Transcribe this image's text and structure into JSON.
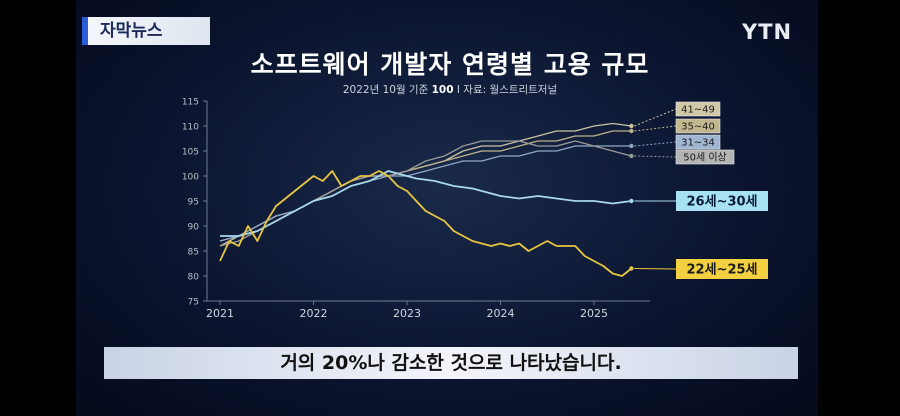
{
  "header": {
    "badge": "자막뉴스",
    "logo": "YTN"
  },
  "caption": "거의 20%나 감소한 것으로 나타났습니다.",
  "chart_data": {
    "type": "line",
    "title": "소프트웨어 개발자 연령별 고용 규모",
    "subtitle_parts": [
      "2022년 10월 기준 ",
      "100",
      "  I  자료: 월스트리트저널"
    ],
    "ylim": [
      75,
      115
    ],
    "y_ticks": [
      75,
      80,
      85,
      90,
      95,
      100,
      105,
      110,
      115
    ],
    "xlim": [
      2021,
      2025.5
    ],
    "x_ticks": [
      2021,
      2022,
      2023,
      2024,
      2025
    ],
    "grid": false,
    "series": [
      {
        "name": "41~49",
        "color": "#c9c3a2",
        "label_bg": "#cfc9a8",
        "label_fg": "#1a1a1a",
        "end_value": 110,
        "points": [
          [
            2021.0,
            86
          ],
          [
            2021.2,
            88
          ],
          [
            2021.4,
            90
          ],
          [
            2021.6,
            92
          ],
          [
            2021.8,
            93
          ],
          [
            2022.0,
            95
          ],
          [
            2022.2,
            97
          ],
          [
            2022.4,
            99
          ],
          [
            2022.6,
            100
          ],
          [
            2022.8,
            100
          ],
          [
            2023.0,
            101
          ],
          [
            2023.2,
            102
          ],
          [
            2023.4,
            103
          ],
          [
            2023.6,
            105
          ],
          [
            2023.8,
            106
          ],
          [
            2024.0,
            106
          ],
          [
            2024.2,
            107
          ],
          [
            2024.4,
            108
          ],
          [
            2024.6,
            109
          ],
          [
            2024.8,
            109
          ],
          [
            2025.0,
            110
          ],
          [
            2025.2,
            110.5
          ],
          [
            2025.4,
            110
          ]
        ]
      },
      {
        "name": "35~40",
        "color": "#bdb38d",
        "label_bg": "#c2b88f",
        "label_fg": "#1a1a1a",
        "end_value": 109,
        "points": [
          [
            2021.0,
            87
          ],
          [
            2021.2,
            88
          ],
          [
            2021.4,
            89
          ],
          [
            2021.6,
            91
          ],
          [
            2021.8,
            93
          ],
          [
            2022.0,
            95
          ],
          [
            2022.2,
            97
          ],
          [
            2022.4,
            99
          ],
          [
            2022.6,
            100
          ],
          [
            2022.8,
            100
          ],
          [
            2023.0,
            101
          ],
          [
            2023.2,
            102
          ],
          [
            2023.4,
            103
          ],
          [
            2023.6,
            104
          ],
          [
            2023.8,
            105
          ],
          [
            2024.0,
            105
          ],
          [
            2024.2,
            106
          ],
          [
            2024.4,
            107
          ],
          [
            2024.6,
            107
          ],
          [
            2024.8,
            108
          ],
          [
            2025.0,
            108
          ],
          [
            2025.2,
            109
          ],
          [
            2025.4,
            109
          ]
        ]
      },
      {
        "name": "31~34",
        "color": "#8fa7c7",
        "label_bg": "#9fb5d2",
        "label_fg": "#1a1a1a",
        "end_value": 106,
        "points": [
          [
            2021.0,
            87
          ],
          [
            2021.2,
            88
          ],
          [
            2021.4,
            90
          ],
          [
            2021.6,
            92
          ],
          [
            2021.8,
            93
          ],
          [
            2022.0,
            95
          ],
          [
            2022.2,
            96
          ],
          [
            2022.4,
            98
          ],
          [
            2022.6,
            99
          ],
          [
            2022.8,
            100
          ],
          [
            2023.0,
            100
          ],
          [
            2023.2,
            101
          ],
          [
            2023.4,
            102
          ],
          [
            2023.6,
            103
          ],
          [
            2023.8,
            103
          ],
          [
            2024.0,
            104
          ],
          [
            2024.2,
            104
          ],
          [
            2024.4,
            105
          ],
          [
            2024.6,
            105
          ],
          [
            2024.8,
            106
          ],
          [
            2025.0,
            106
          ],
          [
            2025.2,
            106
          ],
          [
            2025.4,
            106
          ]
        ]
      },
      {
        "name": "50세 이상",
        "color": "#9a9a9a",
        "label_bg": "#b4b4b4",
        "label_fg": "#1a1a1a",
        "end_value": 104,
        "points": [
          [
            2021.0,
            86
          ],
          [
            2021.2,
            87
          ],
          [
            2021.4,
            89
          ],
          [
            2021.6,
            91
          ],
          [
            2021.8,
            93
          ],
          [
            2022.0,
            95
          ],
          [
            2022.2,
            97
          ],
          [
            2022.4,
            99
          ],
          [
            2022.6,
            100
          ],
          [
            2022.8,
            100
          ],
          [
            2023.0,
            101
          ],
          [
            2023.2,
            103
          ],
          [
            2023.4,
            104
          ],
          [
            2023.6,
            106
          ],
          [
            2023.8,
            107
          ],
          [
            2024.0,
            107
          ],
          [
            2024.2,
            107
          ],
          [
            2024.4,
            106
          ],
          [
            2024.6,
            106
          ],
          [
            2024.8,
            107
          ],
          [
            2025.0,
            106
          ],
          [
            2025.2,
            105
          ],
          [
            2025.4,
            104
          ]
        ]
      },
      {
        "name": "26세~30세",
        "color": "#a9d8ea",
        "label_bg": "#a7e2f4",
        "label_fg": "#0a1a3a",
        "end_value": 95,
        "points": [
          [
            2021.0,
            88
          ],
          [
            2021.2,
            88
          ],
          [
            2021.4,
            89
          ],
          [
            2021.6,
            91
          ],
          [
            2021.8,
            93
          ],
          [
            2022.0,
            95
          ],
          [
            2022.2,
            96
          ],
          [
            2022.4,
            98
          ],
          [
            2022.6,
            99
          ],
          [
            2022.8,
            101
          ],
          [
            2023.0,
            100
          ],
          [
            2023.1,
            99.5
          ],
          [
            2023.3,
            99
          ],
          [
            2023.5,
            98
          ],
          [
            2023.7,
            97.5
          ],
          [
            2023.9,
            96.5
          ],
          [
            2024.0,
            96
          ],
          [
            2024.2,
            95.5
          ],
          [
            2024.4,
            96
          ],
          [
            2024.6,
            95.5
          ],
          [
            2024.8,
            95
          ],
          [
            2025.0,
            95
          ],
          [
            2025.2,
            94.5
          ],
          [
            2025.4,
            95
          ]
        ]
      },
      {
        "name": "22세~25세",
        "color": "#e8c640",
        "label_bg": "#f2d03f",
        "label_fg": "#1a1a1a",
        "end_value": 81.5,
        "points": [
          [
            2021.0,
            83
          ],
          [
            2021.1,
            87
          ],
          [
            2021.2,
            86
          ],
          [
            2021.3,
            90
          ],
          [
            2021.4,
            87
          ],
          [
            2021.5,
            91
          ],
          [
            2021.6,
            94
          ],
          [
            2021.8,
            97
          ],
          [
            2022.0,
            100
          ],
          [
            2022.1,
            99
          ],
          [
            2022.2,
            101
          ],
          [
            2022.3,
            98
          ],
          [
            2022.4,
            99
          ],
          [
            2022.5,
            100
          ],
          [
            2022.6,
            100
          ],
          [
            2022.7,
            101
          ],
          [
            2022.8,
            100
          ],
          [
            2022.9,
            98
          ],
          [
            2023.0,
            97
          ],
          [
            2023.1,
            95
          ],
          [
            2023.2,
            93
          ],
          [
            2023.3,
            92
          ],
          [
            2023.4,
            91
          ],
          [
            2023.5,
            89
          ],
          [
            2023.6,
            88
          ],
          [
            2023.7,
            87
          ],
          [
            2023.8,
            86.5
          ],
          [
            2023.9,
            86
          ],
          [
            2024.0,
            86.5
          ],
          [
            2024.1,
            86
          ],
          [
            2024.2,
            86.5
          ],
          [
            2024.3,
            85
          ],
          [
            2024.4,
            86
          ],
          [
            2024.5,
            87
          ],
          [
            2024.6,
            86
          ],
          [
            2024.7,
            86
          ],
          [
            2024.8,
            86
          ],
          [
            2024.9,
            84
          ],
          [
            2025.0,
            83
          ],
          [
            2025.1,
            82
          ],
          [
            2025.2,
            80.5
          ],
          [
            2025.3,
            80
          ],
          [
            2025.4,
            81.5
          ]
        ]
      }
    ]
  }
}
